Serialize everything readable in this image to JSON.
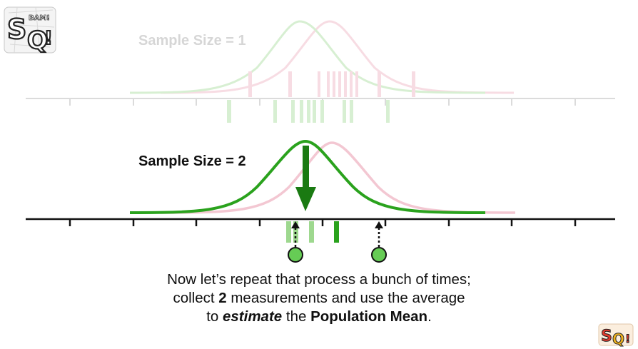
{
  "top_panel": {
    "label": "Sample Size = 1"
  },
  "main_panel": {
    "label": "Sample Size = 2"
  },
  "caption": {
    "line1": "Now let’s repeat that process a bunch of times;",
    "line2_a": "collect ",
    "line2_b": "2",
    "line2_c": " measurements and use the average",
    "line3_a": "to ",
    "line3_b": "estimate",
    "line3_c": " the ",
    "line3_d": "Population Mean",
    "line3_e": "."
  },
  "logo": {
    "text": "StatQuest BAM!",
    "small_text": "SQ!"
  },
  "colors": {
    "green": "#2aa21d",
    "dark_green": "#1a7a12",
    "light_green": "#9ed88f",
    "pink": "#f3c7d2",
    "grey_axis": "#cfcfcf",
    "axis": "#111111",
    "dot_fill": "#66cc55"
  },
  "icons": [
    "statquest-logo-icon",
    "down-arrow-icon",
    "dotted-arrow-icon",
    "measurement-dot-icon"
  ]
}
